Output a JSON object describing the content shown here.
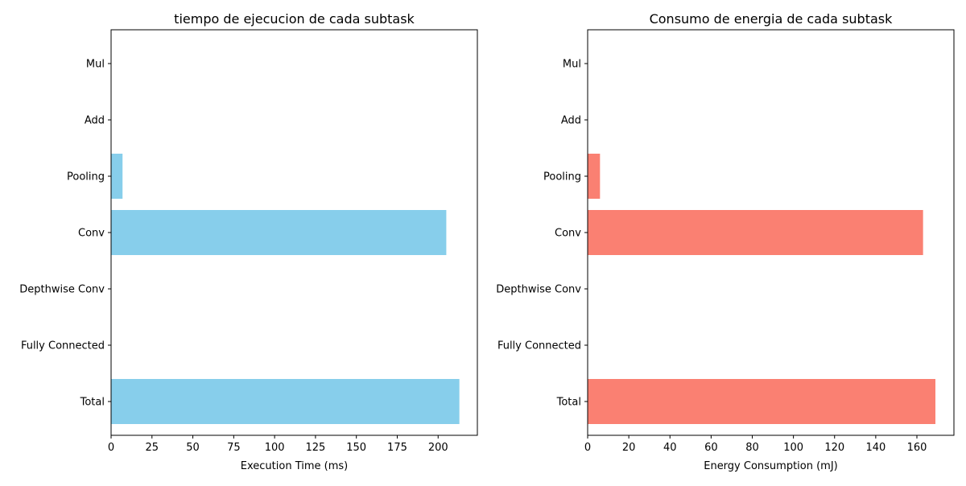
{
  "chart_data": [
    {
      "type": "bar",
      "orientation": "horizontal",
      "title": "tiempo de ejecucion de cada subtask",
      "xlabel": "Execution Time (ms)",
      "ylabel": "",
      "categories": [
        "Total",
        "Fully Connected",
        "Depthwise Conv",
        "Conv",
        "Pooling",
        "Add",
        "Mul"
      ],
      "values": [
        213,
        0,
        0,
        205,
        7,
        0,
        0
      ],
      "xlim": [
        0,
        224
      ],
      "xticks": [
        "0",
        "25",
        "50",
        "75",
        "100",
        "125",
        "150",
        "175",
        "200"
      ],
      "bar_color": "#87ceeb",
      "grid": false
    },
    {
      "type": "bar",
      "orientation": "horizontal",
      "title": "Consumo de energia de cada subtask",
      "xlabel": "Energy Consumption (mJ)",
      "ylabel": "",
      "categories": [
        "Total",
        "Fully Connected",
        "Depthwise Conv",
        "Conv",
        "Pooling",
        "Add",
        "Mul"
      ],
      "values": [
        169,
        0,
        0,
        163,
        6,
        0,
        0
      ],
      "xlim": [
        0,
        178
      ],
      "xticks": [
        "0",
        "20",
        "40",
        "60",
        "80",
        "100",
        "120",
        "140",
        "160"
      ],
      "bar_color": "#fa8072",
      "grid": false
    }
  ]
}
